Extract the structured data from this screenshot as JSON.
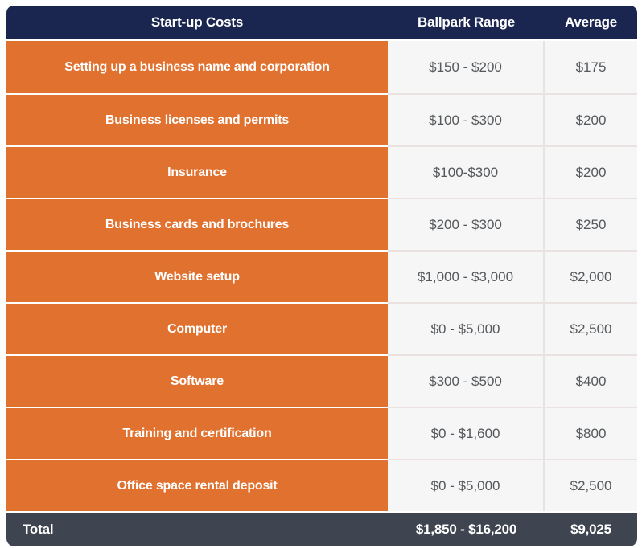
{
  "chart_data": {
    "type": "table",
    "columns": [
      "Start-up Costs",
      "Ballpark Range",
      "Average"
    ],
    "rows": [
      {
        "label": "Setting up a business name and corporation",
        "range": "$150 - $200",
        "average": "$175"
      },
      {
        "label": "Business licenses and permits",
        "range": "$100 - $300",
        "average": "$200"
      },
      {
        "label": "Insurance",
        "range": "$100-$300",
        "average": "$200"
      },
      {
        "label": "Business cards and brochures",
        "range": "$200 - $300",
        "average": "$250"
      },
      {
        "label": "Website setup",
        "range": "$1,000 - $3,000",
        "average": "$2,000"
      },
      {
        "label": "Computer",
        "range": "$0 - $5,000",
        "average": "$2,500"
      },
      {
        "label": "Software",
        "range": "$300 - $500",
        "average": "$400"
      },
      {
        "label": "Training and certification",
        "range": "$0 - $1,600",
        "average": "$800"
      },
      {
        "label": "Office space rental deposit",
        "range": "$0 - $5,000",
        "average": "$2,500"
      }
    ],
    "total_row": {
      "label": "Total",
      "range": "$1,850 - $16,200",
      "average": "$9,025"
    }
  },
  "colors": {
    "header_bg": "#1b2650",
    "row_label_bg": "#e0712f",
    "value_bg": "#f5f6f5",
    "footer_bg": "#3e4450",
    "divider": "#eae2e1",
    "value_text": "#55585c"
  }
}
